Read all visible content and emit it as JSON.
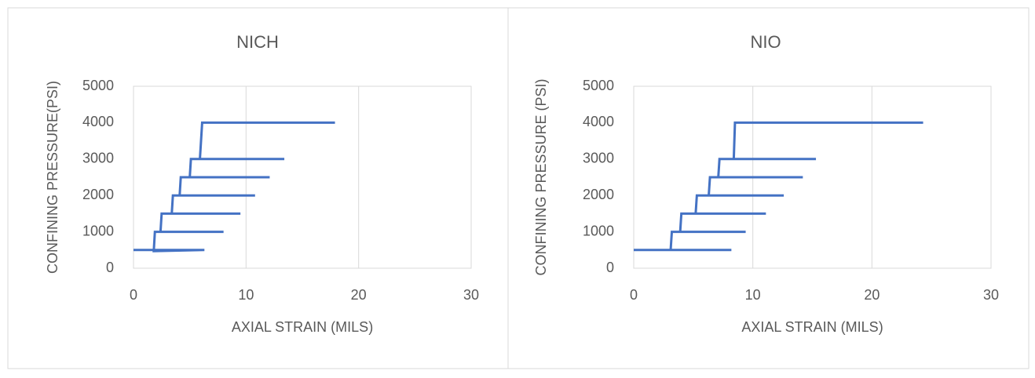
{
  "chart_data": [
    {
      "type": "line",
      "title": "NICH",
      "x_label": "AXIAL STRAIN (MILS)",
      "y_label": "CONFINING PRESSURE(PSI)",
      "x": [
        0,
        6.3,
        1.8,
        1.9,
        8.0,
        2.4,
        2.5,
        9.5,
        3.4,
        3.5,
        10.8,
        4.1,
        4.2,
        12.1,
        5.0,
        5.1,
        13.4,
        5.9,
        6.1,
        17.9
      ],
      "values": [
        500,
        500,
        470,
        1000,
        1000,
        1000,
        1500,
        1500,
        1500,
        2000,
        2000,
        2000,
        2500,
        2500,
        2500,
        3000,
        3000,
        3000,
        4000,
        4000
      ],
      "color": "#4472c4",
      "xlim": [
        0,
        30
      ],
      "xticks": [
        0,
        10,
        20,
        30
      ],
      "ylim": [
        0,
        5000
      ],
      "yticks": [
        0,
        1000,
        2000,
        3000,
        4000,
        5000
      ],
      "grid": "x"
    },
    {
      "type": "line",
      "title": "NIO",
      "x_label": "AXIAL STRAIN (MILS)",
      "y_label": "CONFINING PRESSURE (PSI)",
      "x": [
        0,
        8.2,
        3.1,
        3.2,
        9.4,
        3.9,
        4.0,
        11.1,
        5.2,
        5.3,
        12.6,
        6.3,
        6.4,
        14.2,
        7.1,
        7.2,
        15.3,
        8.4,
        8.5,
        24.3
      ],
      "values": [
        500,
        500,
        500,
        1000,
        1000,
        1000,
        1500,
        1500,
        1500,
        2000,
        2000,
        2000,
        2500,
        2500,
        2500,
        3000,
        3000,
        3000,
        4000,
        4000
      ],
      "color": "#4472c4",
      "xlim": [
        0,
        30
      ],
      "xticks": [
        0,
        10,
        20,
        30
      ],
      "ylim": [
        0,
        5000
      ],
      "yticks": [
        0,
        1000,
        2000,
        3000,
        4000,
        5000
      ],
      "grid": "x"
    }
  ]
}
